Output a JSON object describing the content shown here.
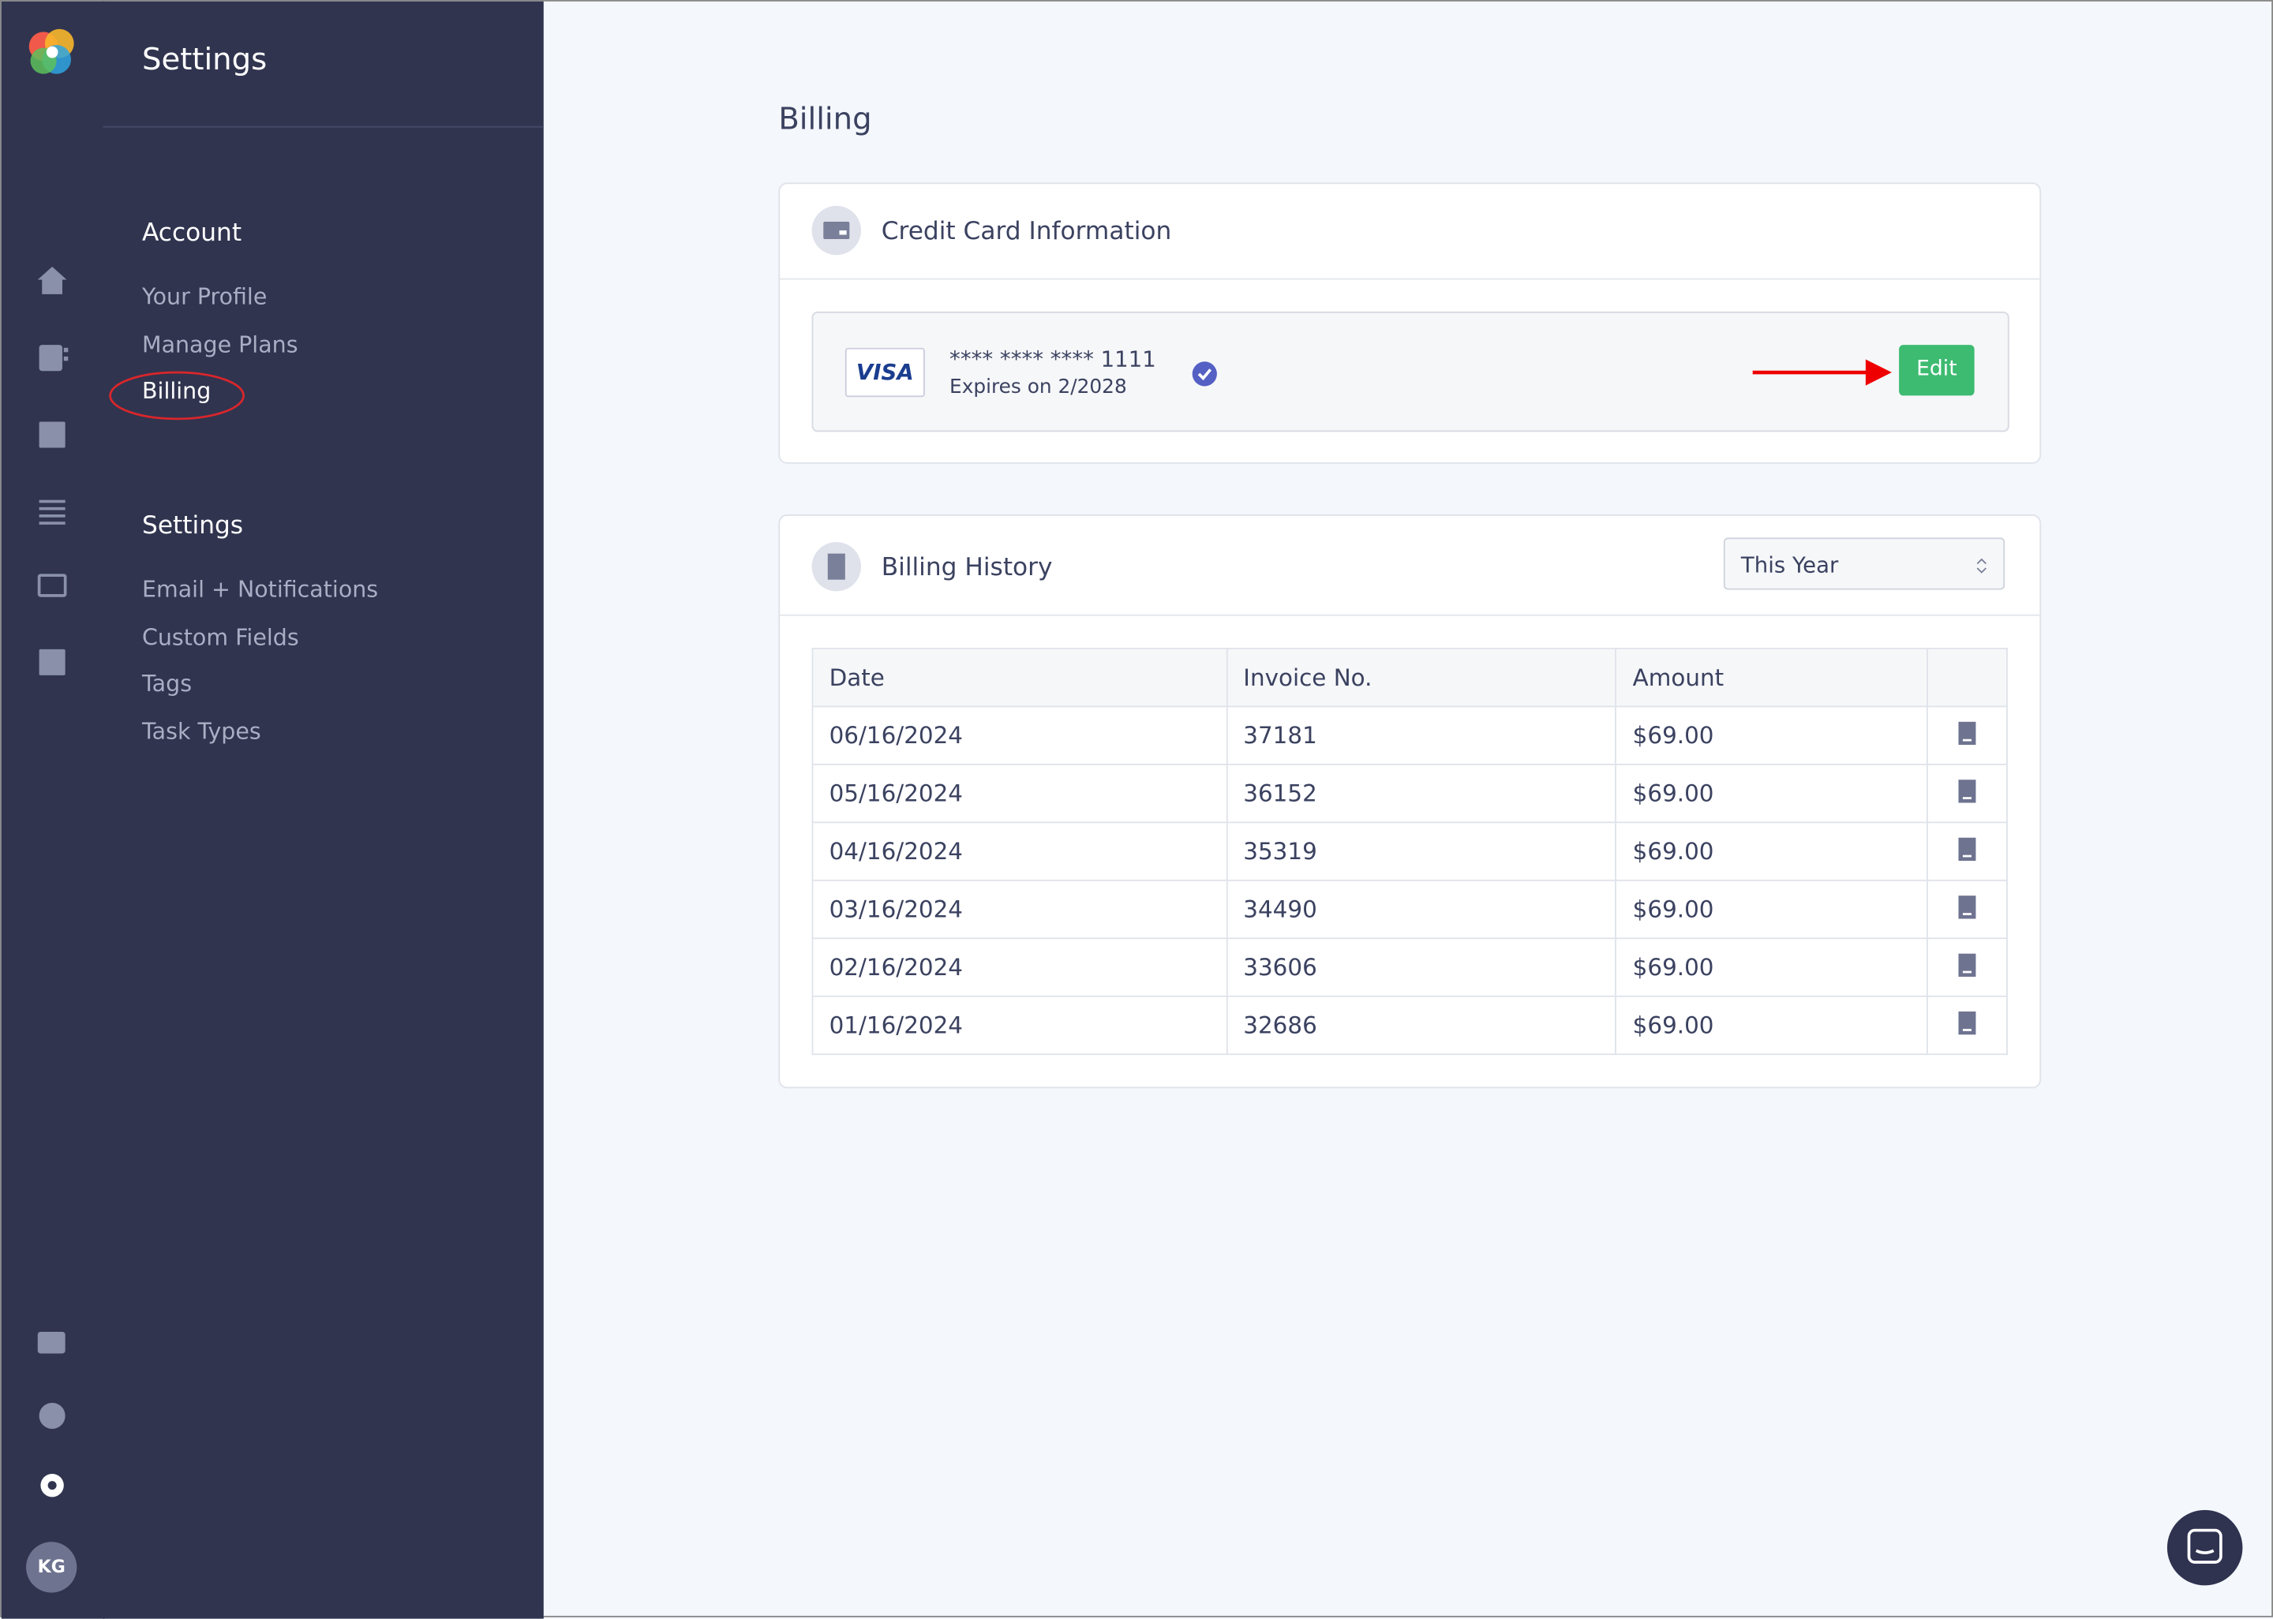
{
  "sidebar": {
    "title": "Settings",
    "sections": [
      {
        "heading": "Account",
        "items": [
          "Your Profile",
          "Manage Plans",
          "Billing"
        ]
      },
      {
        "heading": "Settings",
        "items": [
          "Email + Notifications",
          "Custom Fields",
          "Tags",
          "Task Types"
        ]
      }
    ]
  },
  "avatar": "KG",
  "page": {
    "title": "Billing"
  },
  "card": {
    "title": "Credit Card Information",
    "brand": "VISA",
    "number": "**** **** **** 1111",
    "expiry": "Expires on 2/2028",
    "button": "Edit"
  },
  "history": {
    "title": "Billing History",
    "filter": "This Year",
    "table": {
      "columns": [
        "Date",
        "Invoice No.",
        "Amount"
      ],
      "rows": [
        [
          "06/16/2024",
          "37181",
          "$69.00"
        ],
        [
          "05/16/2024",
          "36152",
          "$69.00"
        ],
        [
          "04/16/2024",
          "35319",
          "$69.00"
        ],
        [
          "03/16/2024",
          "34490",
          "$69.00"
        ],
        [
          "02/16/2024",
          "33606",
          "$69.00"
        ],
        [
          "01/16/2024",
          "32686",
          "$69.00"
        ]
      ]
    }
  }
}
